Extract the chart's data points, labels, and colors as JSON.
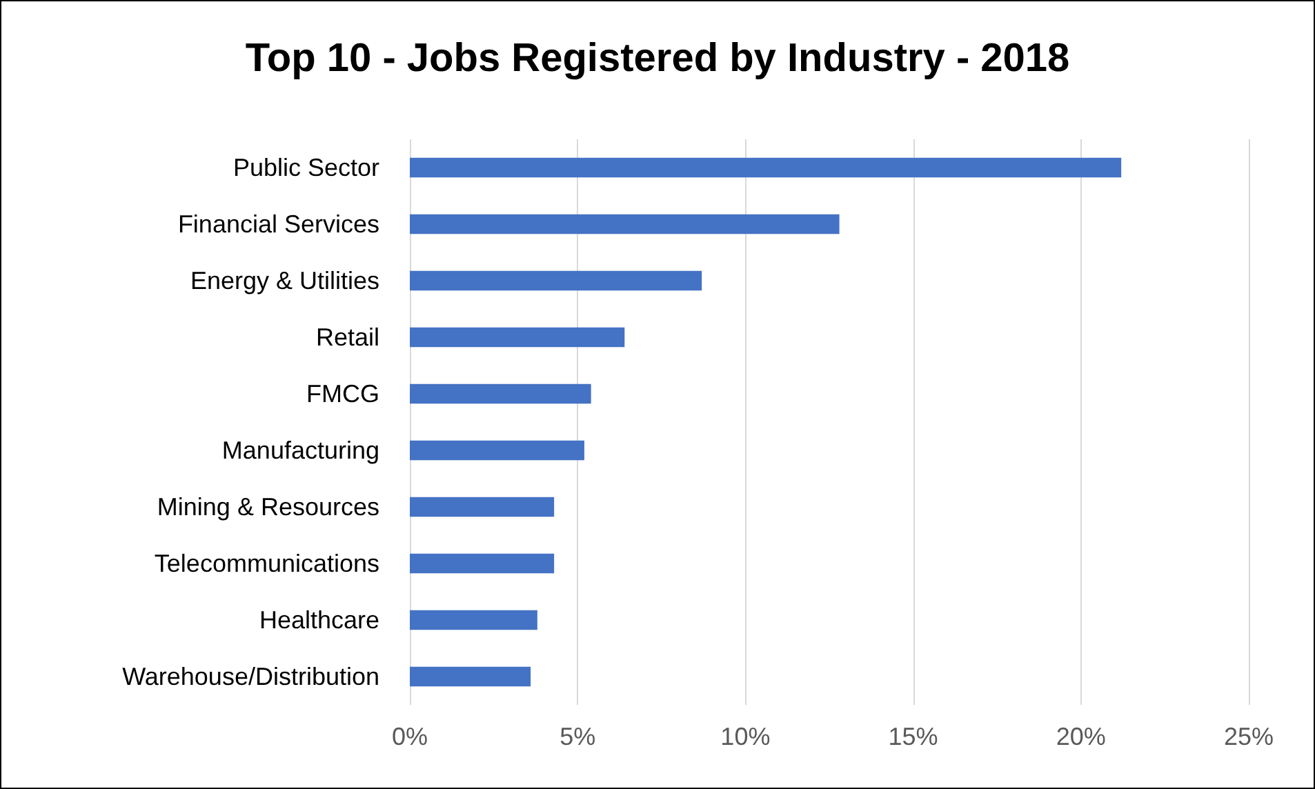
{
  "chart_data": {
    "type": "bar",
    "orientation": "horizontal",
    "title": "Top 10 - Jobs Registered by Industry - 2018",
    "categories": [
      "Public Sector",
      "Financial Services",
      "Energy & Utilities",
      "Retail",
      "FMCG",
      "Manufacturing",
      "Mining & Resources",
      "Telecommunications",
      "Healthcare",
      "Warehouse/Distribution"
    ],
    "values": [
      21.2,
      12.8,
      8.7,
      6.4,
      5.4,
      5.2,
      4.3,
      4.3,
      3.8,
      3.6
    ],
    "color": "#4472c4",
    "xlim": [
      0,
      25
    ],
    "xticks": [
      {
        "value": 0,
        "label": "0%"
      },
      {
        "value": 5,
        "label": "5%"
      },
      {
        "value": 10,
        "label": "10%"
      },
      {
        "value": 15,
        "label": "15%"
      },
      {
        "value": 20,
        "label": "20%"
      },
      {
        "value": 25,
        "label": "25%"
      }
    ],
    "grid": "x"
  }
}
